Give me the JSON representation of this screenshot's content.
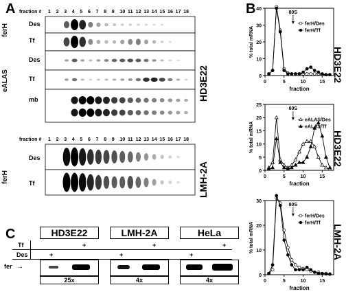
{
  "panels": {
    "A": "A",
    "B": "B",
    "C": "C"
  },
  "panelA": {
    "fraction_label": "fraction #",
    "fractions": [
      "1",
      "2",
      "3",
      "4",
      "5",
      "6",
      "7",
      "8",
      "9",
      "10",
      "11",
      "12",
      "13",
      "14",
      "15",
      "16",
      "17",
      "18"
    ],
    "top_cell_line": "HD3E22",
    "bottom_cell_line": "LMH-2A",
    "groups": {
      "ferH": "ferH",
      "eALAS": "eALAS",
      "ferH2": "ferH"
    },
    "rows": {
      "r1": "Des",
      "r2": "Tf",
      "r3": "Des",
      "r4": "Tf",
      "r5": "mb",
      "r6": "Des",
      "r7": "Tf"
    }
  },
  "panelC": {
    "cells": [
      "HD3E22",
      "LMH-2A",
      "HeLa"
    ],
    "row_tf": "Tf",
    "row_des": "Des",
    "band_label": "fer",
    "plus": "+",
    "folds": [
      "25x",
      "4x",
      "4x"
    ]
  },
  "chart_data": [
    {
      "type": "line",
      "title": "",
      "cell_line": "HD3E22",
      "xlabel": "fraction",
      "ylabel": "% total mRNA",
      "xlim": [
        0,
        18
      ],
      "ylim": [
        0,
        40
      ],
      "xticks": [
        0,
        5,
        10,
        15
      ],
      "yticks": [
        0,
        10,
        20,
        30,
        40
      ],
      "annotation": "80S",
      "legend_position": "top-right",
      "series": [
        {
          "name": "ferH/Des",
          "marker": "open-circle",
          "x": [
            1,
            2,
            3,
            4,
            5,
            6,
            7,
            8,
            9,
            10,
            11,
            12,
            13,
            14,
            15,
            16,
            17
          ],
          "y": [
            1,
            3,
            41,
            27,
            4,
            1.5,
            1,
            1,
            1,
            1,
            1,
            1,
            1,
            1,
            0.5,
            0.5,
            0.5
          ]
        },
        {
          "name": "ferH/Tf",
          "marker": "filled-circle",
          "x": [
            1,
            2,
            3,
            4,
            5,
            6,
            7,
            8,
            9,
            10,
            11,
            12,
            13,
            14,
            15,
            16,
            17
          ],
          "y": [
            1,
            3,
            40,
            26,
            3,
            1,
            1,
            1,
            1,
            2,
            4,
            5,
            3,
            2,
            1,
            0.5,
            0.5
          ]
        }
      ]
    },
    {
      "type": "line",
      "title": "",
      "cell_line": "HD3E22",
      "xlabel": "fraction",
      "ylabel": "% total mRNA",
      "xlim": [
        0,
        18
      ],
      "ylim": [
        0,
        25
      ],
      "xticks": [
        0,
        5,
        10,
        15
      ],
      "yticks": [
        0,
        5,
        10,
        15,
        20,
        25
      ],
      "annotation": "80S",
      "legend_position": "top-right",
      "series": [
        {
          "name": "eALAS/Des",
          "marker": "open-triangle",
          "x": [
            1,
            2,
            3,
            4,
            5,
            6,
            7,
            8,
            9,
            10,
            11,
            12,
            13,
            14,
            15,
            16,
            17
          ],
          "y": [
            1,
            3,
            20,
            4,
            2,
            1,
            2,
            4,
            7,
            10,
            11,
            11,
            9,
            5,
            2,
            1,
            0.5
          ]
        },
        {
          "name": "eALAS/Tf",
          "marker": "filled-triangle",
          "x": [
            1,
            2,
            3,
            4,
            5,
            6,
            7,
            8,
            9,
            10,
            11,
            12,
            13,
            14,
            15,
            16,
            17
          ],
          "y": [
            0.5,
            1,
            12,
            3,
            1,
            0.5,
            1,
            2,
            3,
            3,
            5,
            9,
            16,
            18,
            13,
            5,
            1
          ]
        }
      ]
    },
    {
      "type": "line",
      "title": "",
      "cell_line": "LMH-2A",
      "xlabel": "fraction",
      "ylabel": "% total mRNA",
      "xlim": [
        0,
        18
      ],
      "ylim": [
        0,
        30
      ],
      "xticks": [
        0,
        5,
        10,
        15
      ],
      "yticks": [
        0,
        10,
        20,
        30
      ],
      "annotation": "80S",
      "legend_position": "top-right",
      "series": [
        {
          "name": "ferH/Des",
          "marker": "open-circle",
          "x": [
            1,
            2,
            3,
            4,
            5,
            6,
            7,
            8,
            9,
            10,
            11,
            12,
            13,
            14,
            15,
            16,
            17
          ],
          "y": [
            0.5,
            2,
            31,
            29,
            18,
            11,
            6,
            4,
            3,
            2.5,
            2,
            1.5,
            1,
            1,
            0.5,
            0.5,
            0.3
          ]
        },
        {
          "name": "ferH/Tf",
          "marker": "filled-circle",
          "x": [
            1,
            2,
            3,
            4,
            5,
            6,
            7,
            8,
            9,
            10,
            11,
            12,
            13,
            14,
            15,
            16,
            17
          ],
          "y": [
            0.5,
            4,
            32,
            28,
            14,
            8,
            4,
            2,
            2,
            2,
            3,
            2,
            1,
            0.5,
            0.5,
            0.3,
            0.2
          ]
        }
      ]
    }
  ]
}
